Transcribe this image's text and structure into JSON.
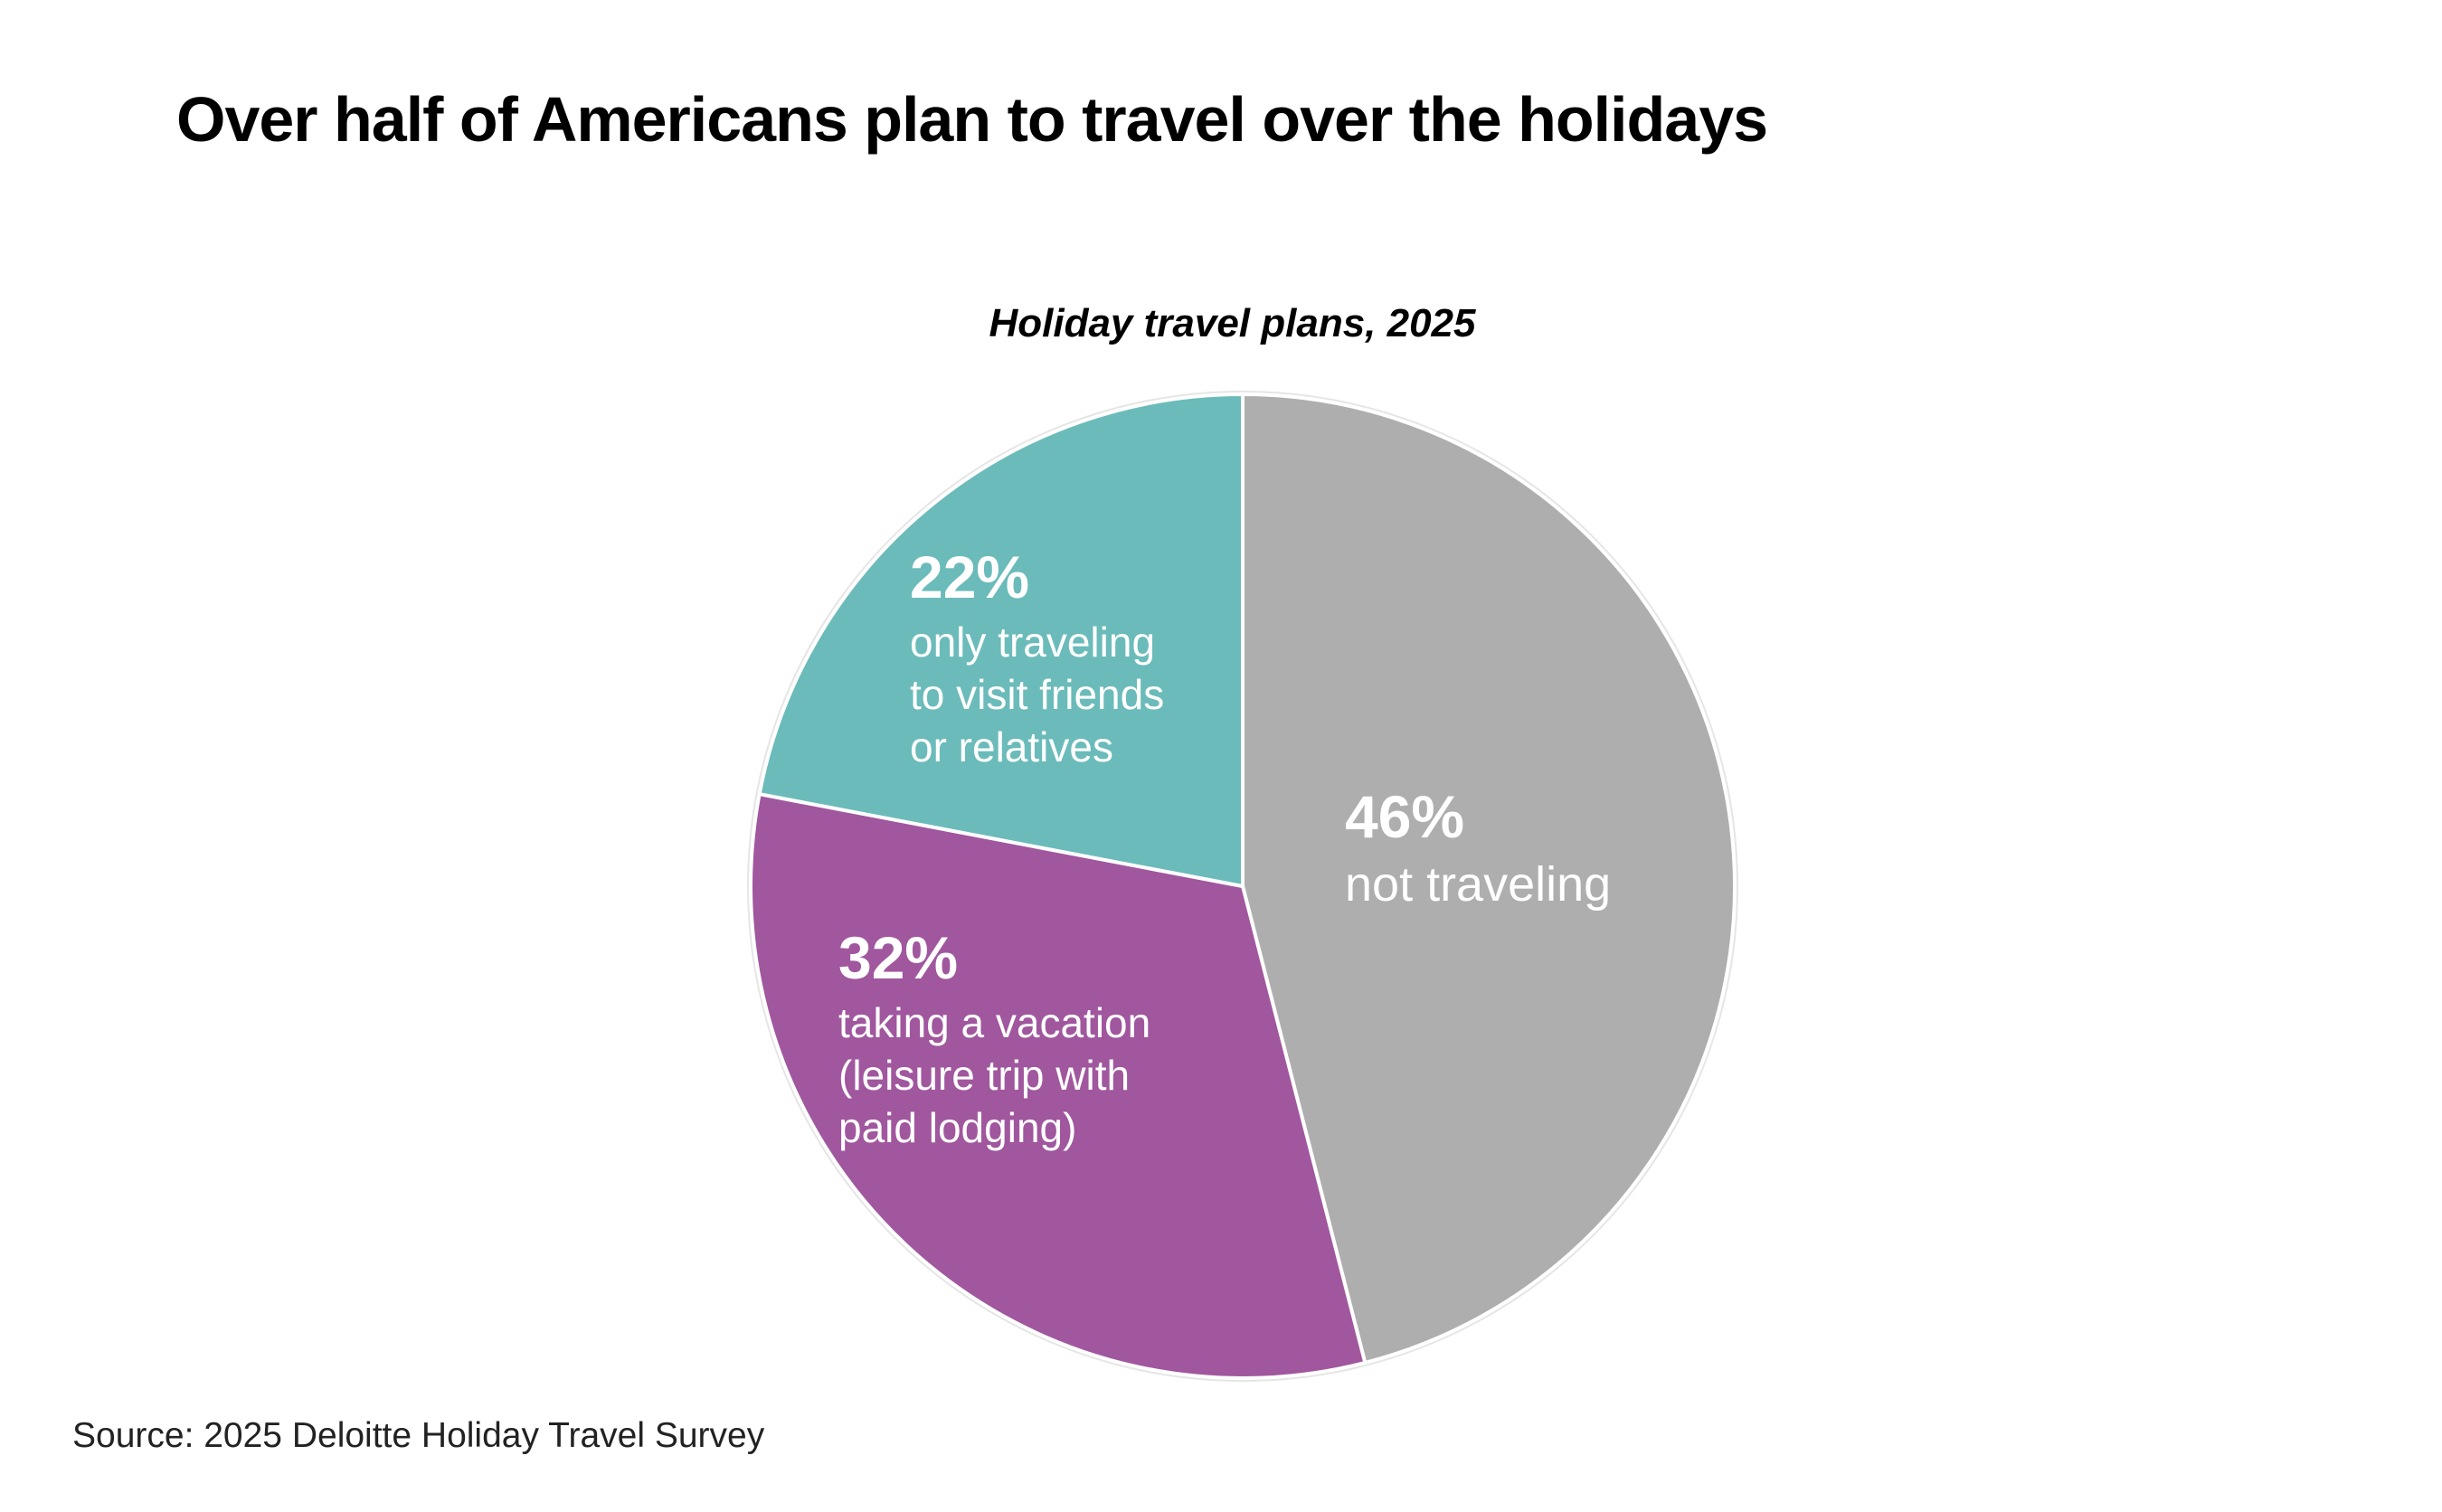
{
  "chart_data": {
    "type": "pie",
    "title": "Over half of Americans plan to travel over the holidays",
    "subtitle": "Holiday travel plans, 2025",
    "slices": [
      {
        "name": "not traveling",
        "pct_label": "46%",
        "value": 46,
        "color": "#AEAEAE"
      },
      {
        "name": "taking a vacation\n(leisure trip with\npaid lodging)",
        "pct_label": "32%",
        "value": 32,
        "color": "#A0579E"
      },
      {
        "name": "only traveling\nto visit friends\nor relatives",
        "pct_label": "22%",
        "value": 22,
        "color": "#6BBBBA"
      }
    ],
    "source": "Source: 2025 Deloitte Holiday Travel Survey"
  }
}
